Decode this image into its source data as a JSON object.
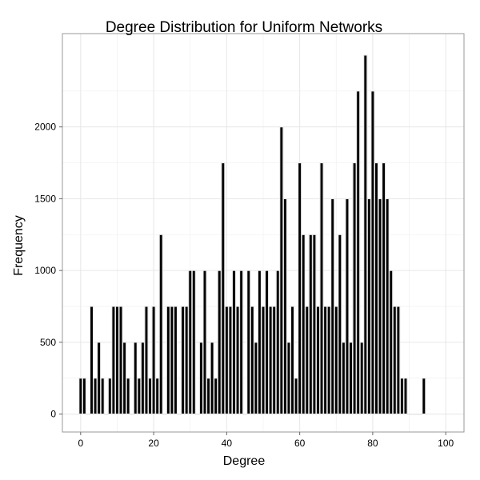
{
  "chart_data": {
    "type": "bar",
    "title": "Degree Distribution for Uniform Networks",
    "xlabel": "Degree",
    "ylabel": "Frequency",
    "xlim": [
      -5,
      105
    ],
    "ylim": [
      -125,
      2650
    ],
    "x_ticks": [
      0,
      20,
      40,
      60,
      80,
      100
    ],
    "y_ticks": [
      0,
      500,
      1000,
      1500,
      2000
    ],
    "grid": true,
    "x": [
      0,
      1,
      2,
      3,
      4,
      5,
      6,
      7,
      8,
      9,
      10,
      11,
      12,
      13,
      14,
      15,
      16,
      17,
      18,
      19,
      20,
      21,
      22,
      23,
      24,
      25,
      26,
      27,
      28,
      29,
      30,
      31,
      32,
      33,
      34,
      35,
      36,
      37,
      38,
      39,
      40,
      41,
      42,
      43,
      44,
      45,
      46,
      47,
      48,
      49,
      50,
      51,
      52,
      53,
      54,
      55,
      56,
      57,
      58,
      59,
      60,
      61,
      62,
      63,
      64,
      65,
      66,
      67,
      68,
      69,
      70,
      71,
      72,
      73,
      74,
      75,
      76,
      77,
      78,
      79,
      80,
      81,
      82,
      83,
      84,
      85,
      86,
      87,
      88,
      89,
      90,
      91,
      92,
      93,
      94
    ],
    "values": [
      250,
      250,
      0,
      750,
      250,
      500,
      250,
      0,
      250,
      750,
      750,
      750,
      500,
      250,
      0,
      500,
      250,
      500,
      750,
      250,
      750,
      250,
      1250,
      0,
      750,
      750,
      750,
      0,
      750,
      750,
      1000,
      1000,
      0,
      500,
      1000,
      250,
      500,
      250,
      1000,
      1750,
      750,
      750,
      1000,
      750,
      1000,
      0,
      1000,
      750,
      500,
      1000,
      750,
      1000,
      750,
      750,
      1000,
      2000,
      1500,
      500,
      750,
      250,
      1750,
      1250,
      750,
      1250,
      1250,
      750,
      1750,
      750,
      750,
      1500,
      750,
      1250,
      500,
      1500,
      500,
      1750,
      2250,
      500,
      2500,
      1500,
      2250,
      1750,
      1500,
      1750,
      1500,
      1000,
      750,
      750,
      250,
      250,
      0,
      0,
      0,
      0,
      250
    ]
  }
}
